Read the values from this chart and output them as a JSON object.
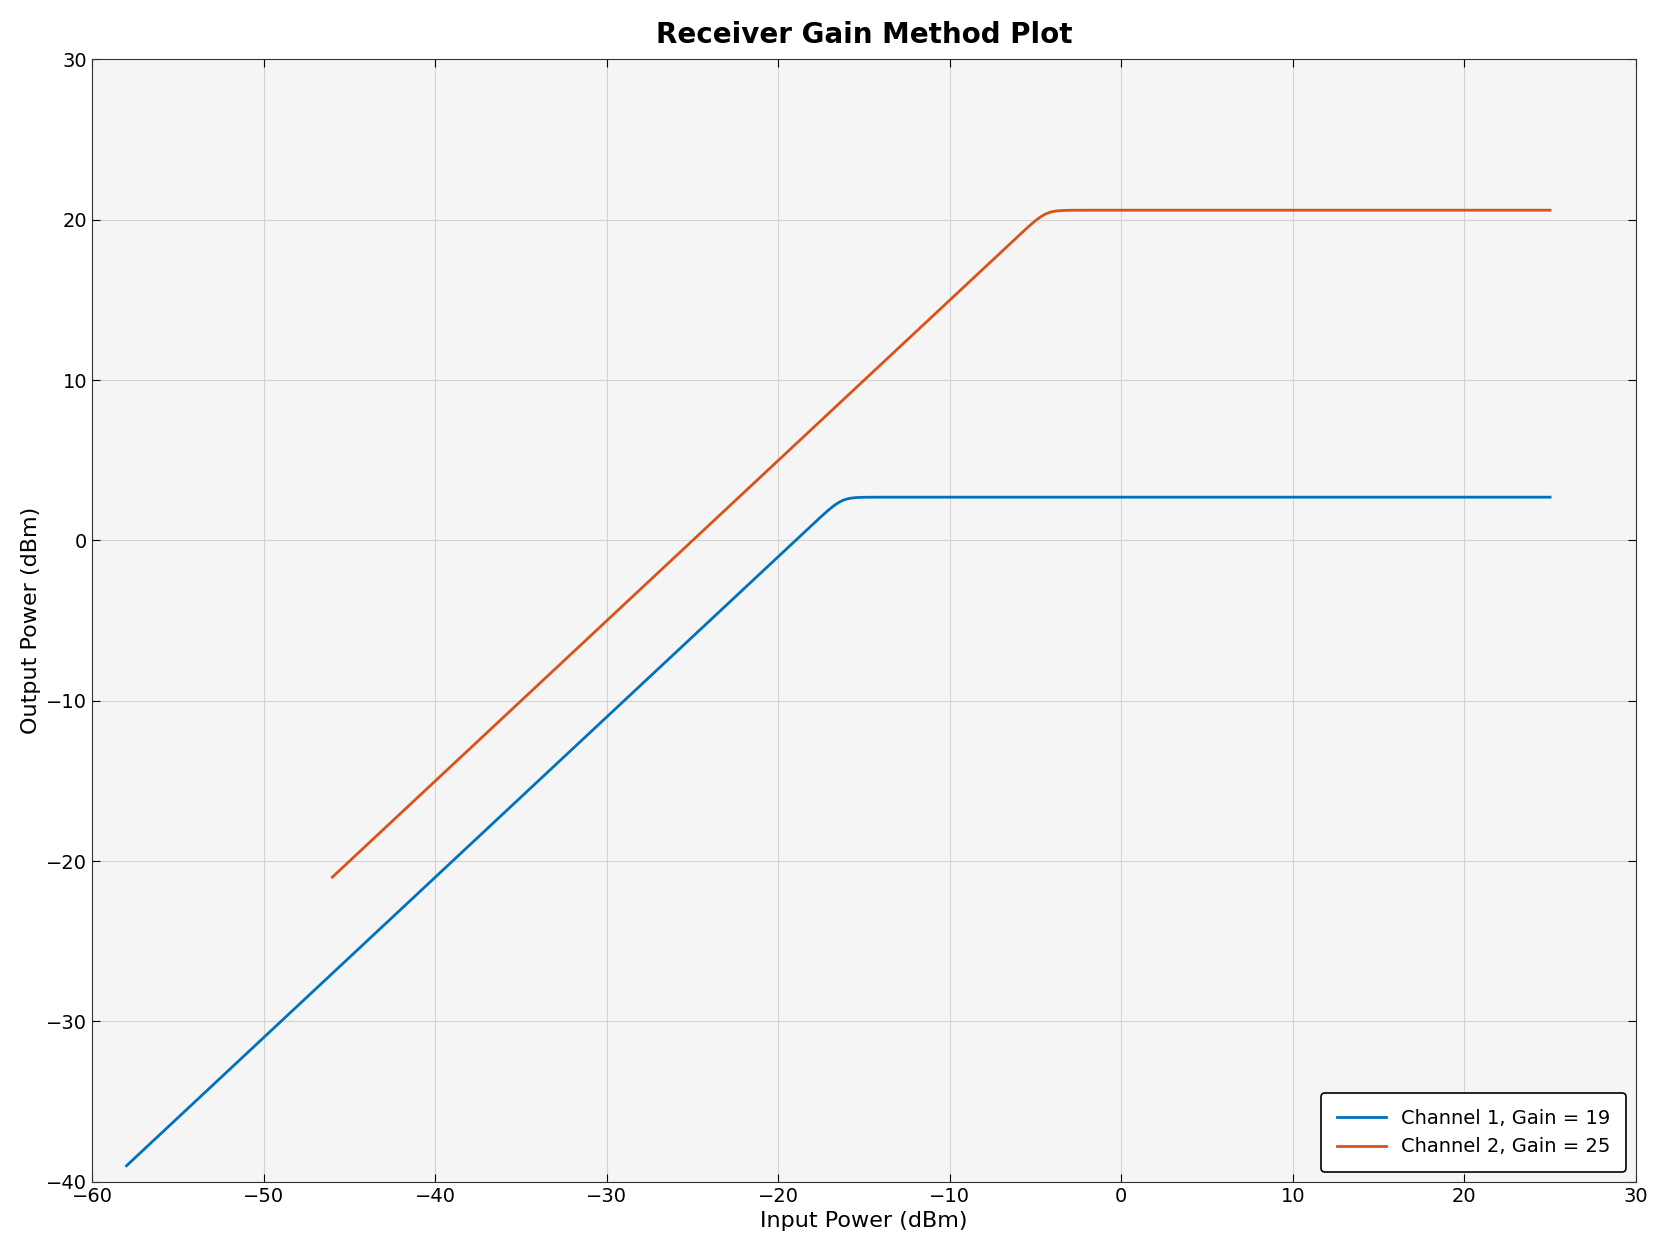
{
  "title": "Receiver Gain Method Plot",
  "xlabel": "Input Power (dBm)",
  "ylabel": "Output Power (dBm)",
  "channel1": {
    "label": "Channel 1, Gain = 19",
    "color": "#0072BD",
    "gain": 19,
    "x_start": -58,
    "x_end": 25,
    "y_sat": 2.7,
    "knee_sharpness": 3.0
  },
  "channel2": {
    "label": "Channel 2, Gain = 25",
    "color": "#D95319",
    "gain": 25,
    "x_start": -46,
    "x_end": 25,
    "y_sat": 20.6,
    "knee_sharpness": 3.0
  },
  "xlim": [
    -60,
    30
  ],
  "ylim": [
    -40,
    30
  ],
  "xticks": [
    -60,
    -50,
    -40,
    -30,
    -20,
    -10,
    0,
    10,
    20,
    30
  ],
  "yticks": [
    -40,
    -30,
    -20,
    -10,
    0,
    10,
    20,
    30
  ],
  "title_fontsize": 20,
  "label_fontsize": 16,
  "tick_fontsize": 14,
  "legend_fontsize": 14,
  "linewidth": 2.0,
  "background_color": "#ffffff",
  "grid_color": "#d3d3d3",
  "axes_bg_color": "#f5f5f5"
}
